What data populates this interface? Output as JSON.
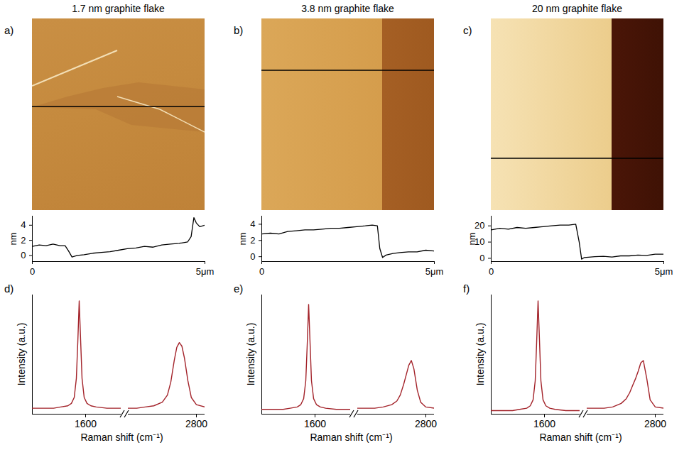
{
  "chart_data": [
    {
      "type": "line",
      "panel": "a)",
      "title": "1.7 nm graphite flake",
      "ylabel": "nm",
      "color": "#000000",
      "x": [
        0,
        0.2,
        0.4,
        0.6,
        0.8,
        0.95,
        1.05,
        1.15,
        1.3,
        1.5,
        1.75,
        2.0,
        2.25,
        2.5,
        2.75,
        3.0,
        3.25,
        3.5,
        3.75,
        4.0,
        4.25,
        4.5,
        4.6,
        4.68,
        4.75,
        4.85,
        5.0
      ],
      "values": [
        1.2,
        1.4,
        1.3,
        1.5,
        1.3,
        1.3,
        0.6,
        -0.2,
        0.0,
        0.1,
        0.3,
        0.4,
        0.5,
        0.7,
        0.9,
        1.0,
        1.2,
        1.1,
        1.4,
        1.5,
        1.6,
        1.8,
        2.5,
        5.0,
        4.3,
        3.8,
        4.0
      ],
      "xlim": [
        0,
        5
      ],
      "xticks": [
        0,
        {
          "value": 5,
          "label": "5μm"
        }
      ],
      "ylim": [
        -0.8,
        5.2
      ],
      "yticks": [
        0,
        2,
        4
      ],
      "grid": false
    },
    {
      "type": "line",
      "panel": "b)",
      "title": "3.8 nm graphite flake",
      "ylabel": "nm",
      "color": "#000000",
      "x": [
        0,
        0.25,
        0.5,
        0.75,
        1,
        1.25,
        1.5,
        1.75,
        2,
        2.25,
        2.5,
        2.75,
        3,
        3.2,
        3.35,
        3.42,
        3.5,
        3.6,
        3.8,
        4,
        4.25,
        4.5,
        4.75,
        5
      ],
      "values": [
        2.8,
        2.9,
        2.8,
        3.1,
        3.2,
        3.3,
        3.3,
        3.4,
        3.5,
        3.5,
        3.6,
        3.7,
        3.8,
        3.9,
        3.8,
        1.0,
        -0.1,
        0.2,
        0.4,
        0.5,
        0.6,
        0.6,
        0.8,
        0.7
      ],
      "xlim": [
        0,
        5
      ],
      "xticks": [
        0,
        {
          "value": 5,
          "label": "5μm"
        }
      ],
      "ylim": [
        -0.6,
        5
      ],
      "yticks": [
        0,
        2,
        4
      ],
      "grid": false
    },
    {
      "type": "line",
      "panel": "c)",
      "title": "20 nm graphite flake",
      "ylabel": "nm",
      "color": "#000000",
      "x": [
        0,
        0.25,
        0.5,
        0.75,
        1,
        1.25,
        1.5,
        1.75,
        2,
        2.25,
        2.45,
        2.55,
        2.62,
        2.7,
        3,
        3.25,
        3.5,
        3.75,
        4,
        4.25,
        4.5,
        4.75,
        5
      ],
      "values": [
        17.5,
        18.5,
        18,
        19,
        18.5,
        19,
        19.5,
        20,
        20.5,
        20.5,
        21,
        10,
        -0.5,
        0.5,
        1,
        1.2,
        0.8,
        1.5,
        1.5,
        2,
        1.8,
        2.5,
        2.5
      ],
      "xlim": [
        0,
        5
      ],
      "xticks": [
        0,
        {
          "value": 5,
          "label": "5μm"
        }
      ],
      "ylim": [
        -2,
        26
      ],
      "yticks": [
        0,
        10,
        20
      ],
      "grid": false
    },
    {
      "type": "line",
      "panel": "d)",
      "xlabel": "Raman shift (cm⁻¹)",
      "ylabel": "Intensity (a.u.)",
      "color": "#a3232a",
      "x": [
        1450,
        1480,
        1510,
        1530,
        1550,
        1560,
        1568,
        1574,
        1578,
        1582,
        1586,
        1590,
        1596,
        1604,
        1615,
        1630,
        1660,
        1700,
        2400,
        2450,
        2500,
        2550,
        2600,
        2630,
        2650,
        2670,
        2685,
        2700,
        2715,
        2730,
        2750,
        2770,
        2800,
        2850
      ],
      "values": [
        0.05,
        0.05,
        0.05,
        0.06,
        0.07,
        0.09,
        0.14,
        0.3,
        0.6,
        0.95,
        0.62,
        0.3,
        0.14,
        0.09,
        0.07,
        0.06,
        0.05,
        0.05,
        0.05,
        0.05,
        0.06,
        0.07,
        0.1,
        0.16,
        0.27,
        0.45,
        0.56,
        0.6,
        0.57,
        0.47,
        0.28,
        0.14,
        0.08,
        0.06
      ],
      "xlim": [
        1450,
        2850
      ],
      "x_break": [
        1700,
        2400
      ],
      "xticks": [
        1600,
        2800
      ],
      "ylim": [
        0,
        1
      ],
      "yticks": [],
      "tick_labels": "x",
      "grid": false
    },
    {
      "type": "line",
      "panel": "e)",
      "xlabel": "Raman shift (cm⁻¹)",
      "ylabel": "Intensity (a.u.)",
      "color": "#a3232a",
      "x": [
        1450,
        1480,
        1510,
        1530,
        1550,
        1560,
        1568,
        1574,
        1578,
        1582,
        1586,
        1590,
        1596,
        1604,
        1615,
        1630,
        1660,
        1700,
        2400,
        2450,
        2500,
        2550,
        2600,
        2630,
        2650,
        2670,
        2685,
        2700,
        2715,
        2730,
        2750,
        2770,
        2800,
        2850
      ],
      "values": [
        0.04,
        0.04,
        0.04,
        0.05,
        0.06,
        0.08,
        0.13,
        0.28,
        0.58,
        0.92,
        0.6,
        0.28,
        0.13,
        0.08,
        0.06,
        0.05,
        0.04,
        0.04,
        0.05,
        0.05,
        0.05,
        0.06,
        0.08,
        0.11,
        0.16,
        0.25,
        0.33,
        0.41,
        0.45,
        0.38,
        0.2,
        0.1,
        0.06,
        0.05
      ],
      "xlim": [
        1450,
        2850
      ],
      "x_break": [
        1700,
        2400
      ],
      "xticks": [
        1600,
        2800
      ],
      "ylim": [
        0,
        1
      ],
      "yticks": [],
      "tick_labels": "x",
      "grid": false
    },
    {
      "type": "line",
      "panel": "f)",
      "xlabel": "Raman shift (cm⁻¹)",
      "ylabel": "Intensity (a.u.)",
      "color": "#a3232a",
      "x": [
        1450,
        1480,
        1510,
        1530,
        1550,
        1560,
        1568,
        1574,
        1578,
        1582,
        1586,
        1590,
        1596,
        1604,
        1615,
        1630,
        1660,
        1700,
        2400,
        2450,
        2500,
        2550,
        2600,
        2630,
        2650,
        2670,
        2685,
        2700,
        2715,
        2730,
        2750,
        2770,
        2800,
        2850
      ],
      "values": [
        0.03,
        0.03,
        0.03,
        0.04,
        0.05,
        0.07,
        0.12,
        0.28,
        0.6,
        0.95,
        0.62,
        0.28,
        0.12,
        0.07,
        0.05,
        0.04,
        0.03,
        0.03,
        0.05,
        0.05,
        0.05,
        0.06,
        0.09,
        0.13,
        0.18,
        0.25,
        0.3,
        0.36,
        0.43,
        0.45,
        0.3,
        0.12,
        0.06,
        0.05
      ],
      "xlim": [
        1450,
        2850
      ],
      "x_break": [
        1700,
        2400
      ],
      "xticks": [
        1600,
        2800
      ],
      "ylim": [
        0,
        1
      ],
      "yticks": [],
      "tick_labels": "x",
      "grid": false
    }
  ]
}
